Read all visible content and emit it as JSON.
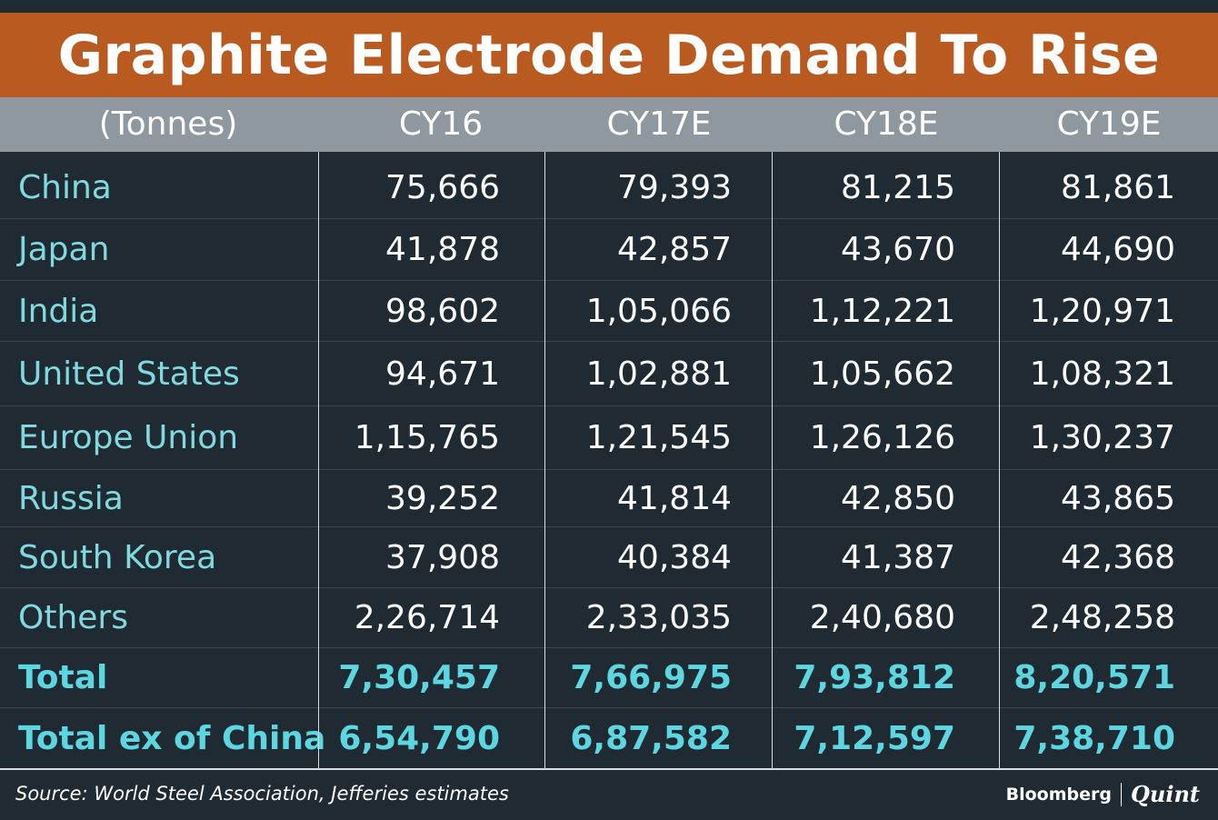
{
  "title": "Graphite Electrode Demand To Rise",
  "table": {
    "headers": [
      "(Tonnes)",
      "CY16",
      "CY17E",
      "CY18E",
      "CY19E"
    ],
    "rows": [
      {
        "label": "China",
        "values": [
          "75,666",
          "79,393",
          "81,215",
          "81,861"
        ]
      },
      {
        "label": "Japan",
        "values": [
          "41,878",
          "42,857",
          "43,670",
          "44,690"
        ]
      },
      {
        "label": "India",
        "values": [
          "98,602",
          "1,05,066",
          "1,12,221",
          "1,20,971"
        ]
      },
      {
        "label": "United States",
        "values": [
          "94,671",
          "1,02,881",
          "1,05,662",
          "1,08,321"
        ]
      },
      {
        "label": "Europe Union",
        "values": [
          "1,15,765",
          "1,21,545",
          "1,26,126",
          "1,30,237"
        ]
      },
      {
        "label": "Russia",
        "values": [
          "39,252",
          "41,814",
          "42,850",
          "43,865"
        ]
      },
      {
        "label": "South Korea",
        "values": [
          "37,908",
          "40,384",
          "41,387",
          "42,368"
        ]
      },
      {
        "label": "Others",
        "values": [
          "2,26,714",
          "2,33,035",
          "2,40,680",
          "2,48,258"
        ]
      },
      {
        "label": "Total",
        "values": [
          "7,30,457",
          "7,66,975",
          "7,93,812",
          "8,20,571"
        ]
      },
      {
        "label": "Total ex of China",
        "values": [
          "6,54,790",
          "6,87,582",
          "7,12,597",
          "7,38,710"
        ]
      }
    ]
  },
  "footer": {
    "source": "Source: World Steel Association, Jefferies estimates",
    "brand_primary": "Bloomberg",
    "brand_secondary": "Quint"
  },
  "colors": {
    "background": "#1f2a33",
    "title_bar": "#b95a20",
    "header_bar": "#8f989f",
    "label_text": "#7fd9df",
    "total_text": "#5cd6e0"
  }
}
